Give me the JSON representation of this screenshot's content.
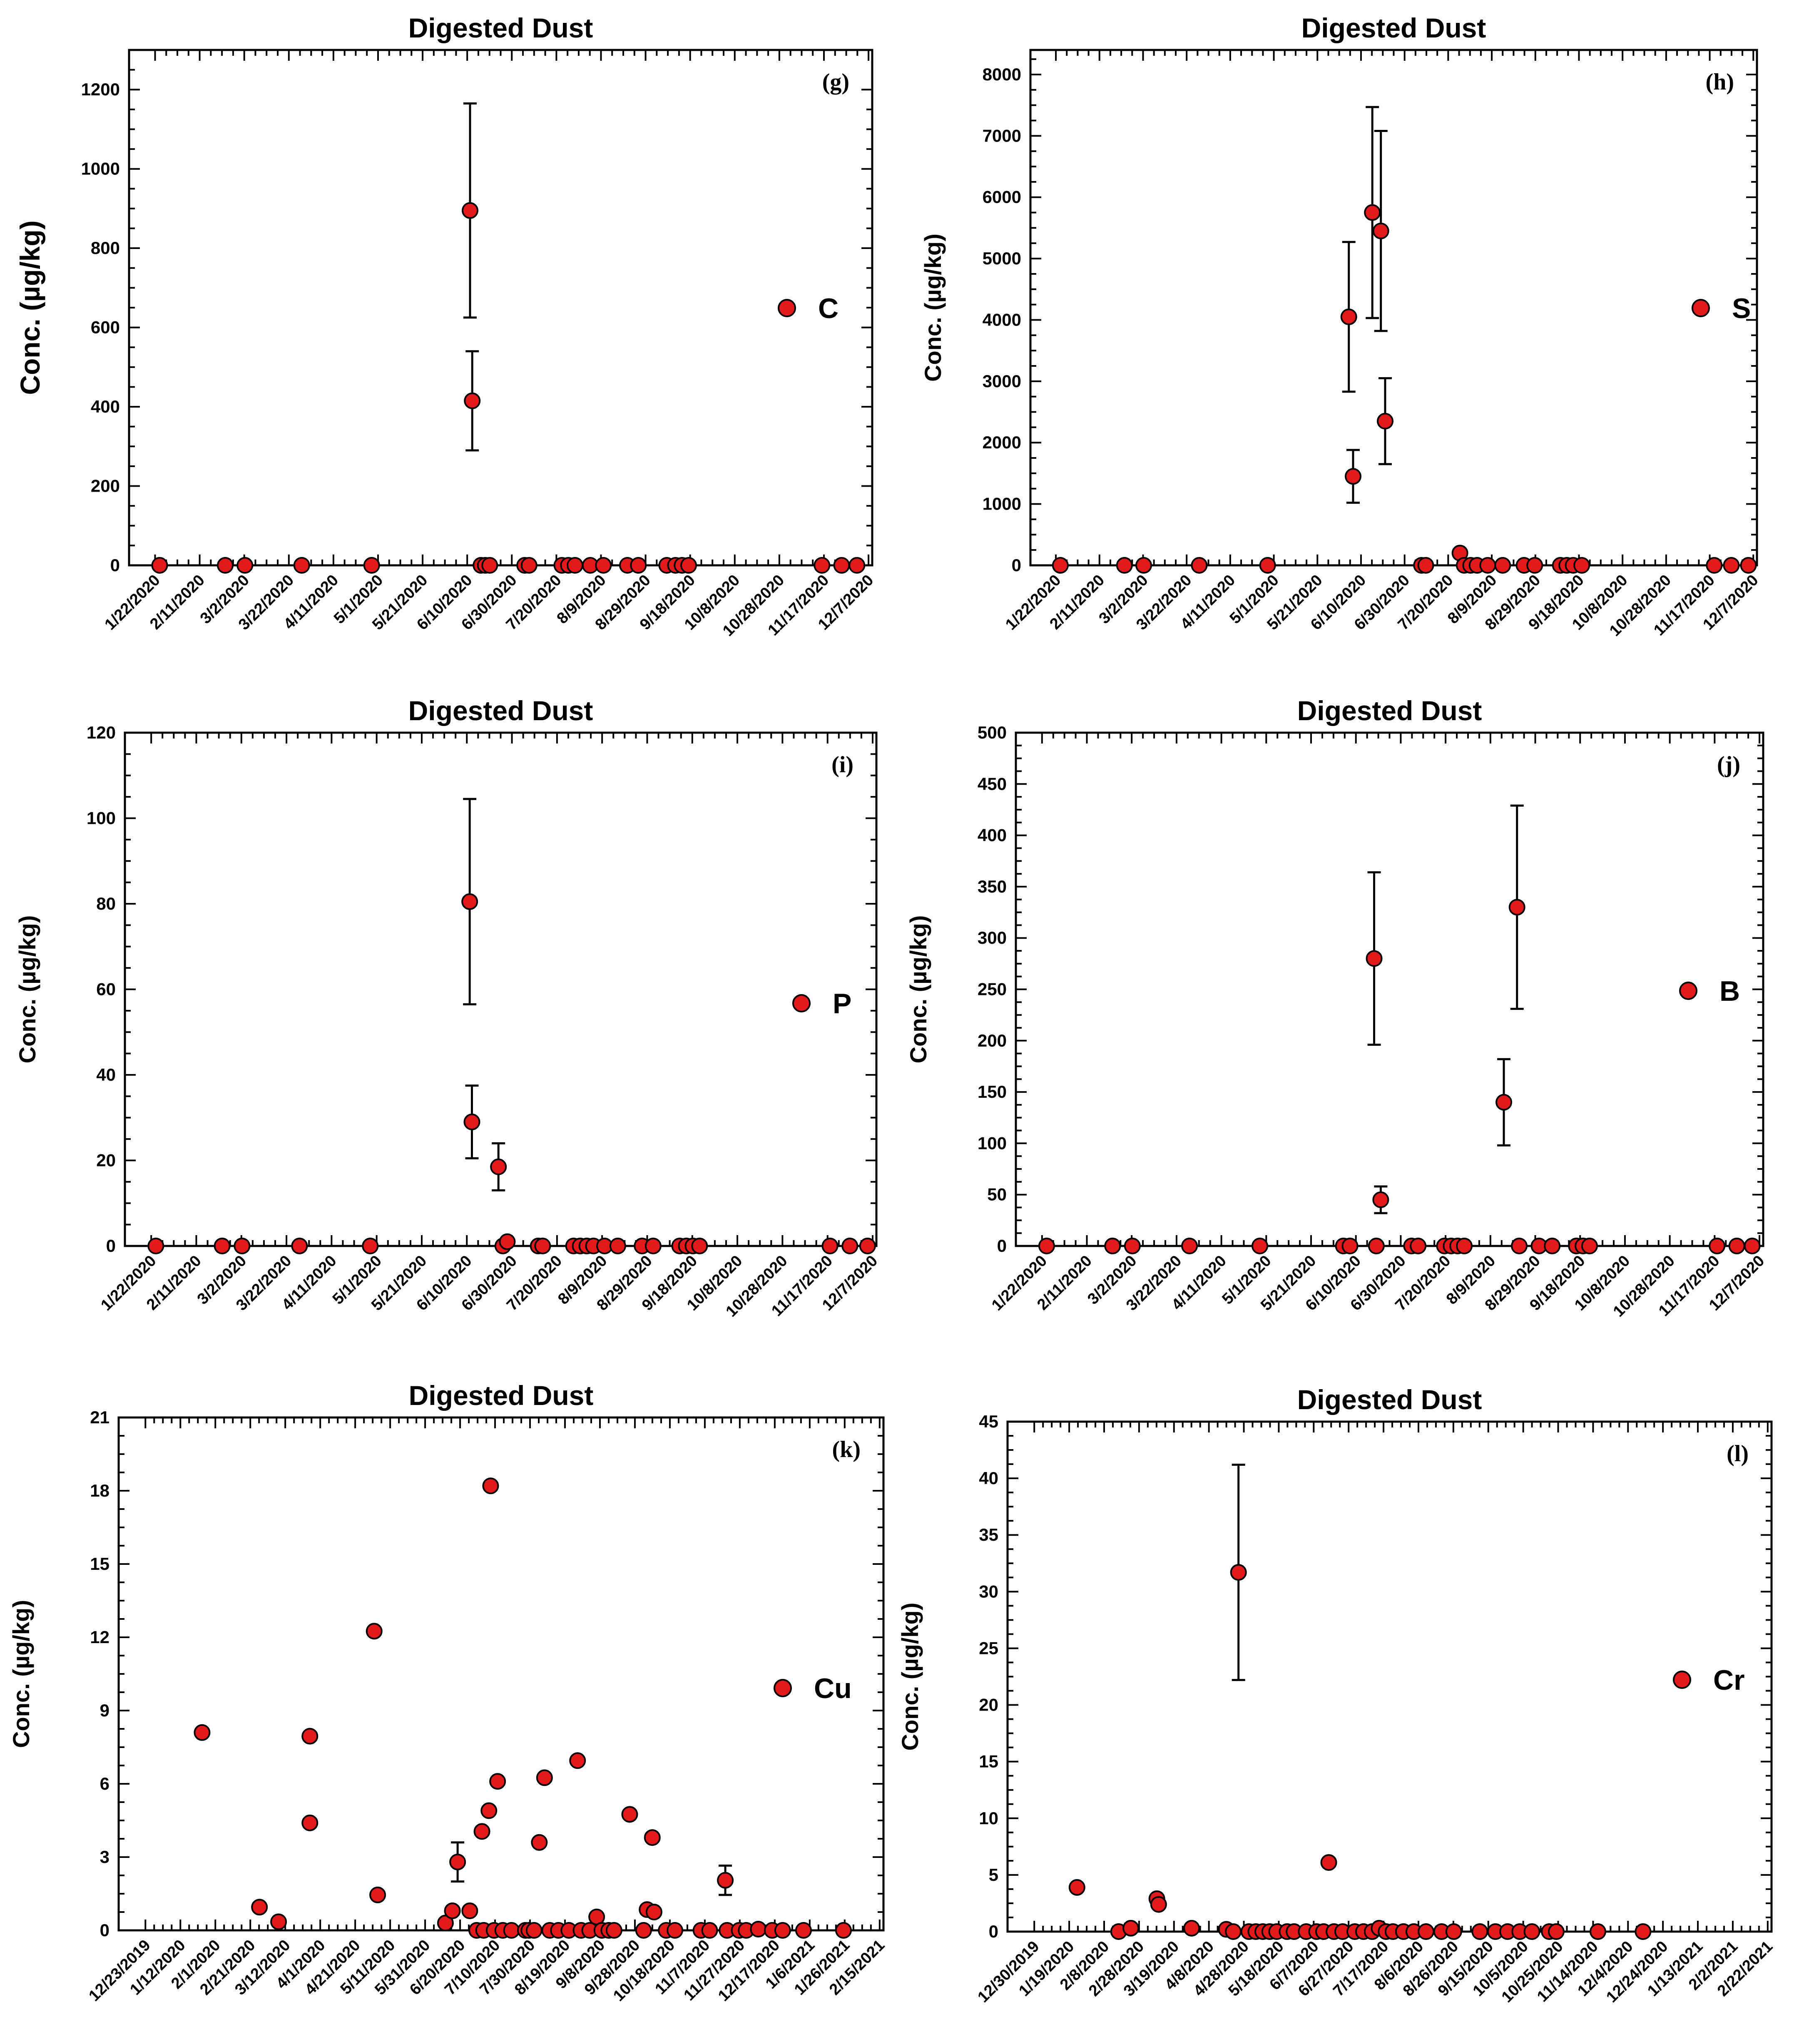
{
  "colors": {
    "marker": "#e31a1c",
    "axis": "#000000"
  },
  "chart_data": [
    {
      "id": "g",
      "type": "scatter",
      "title": "Digested Dust",
      "panel_label": "(g)",
      "series_name": "C",
      "ylabel": "Conc. (µg/kg)",
      "ylim": [
        0,
        1300
      ],
      "yticks": [
        0,
        200,
        400,
        600,
        800,
        1000,
        1200
      ],
      "x_tick_labels": [
        "1/22/2020",
        "2/11/2020",
        "3/2/2020",
        "3/22/2020",
        "4/11/2020",
        "5/1/2020",
        "5/21/2020",
        "6/10/2020",
        "6/30/2020",
        "7/20/2020",
        "8/9/2020",
        "8/29/2020",
        "9/18/2020",
        "10/8/2020",
        "10/28/2020",
        "11/17/2020",
        "12/7/2020"
      ],
      "xlim": [
        -10,
        330
      ],
      "points": [
        {
          "x": 4,
          "y": 0
        },
        {
          "x": 34,
          "y": 0
        },
        {
          "x": 43,
          "y": 0
        },
        {
          "x": 69,
          "y": 0
        },
        {
          "x": 101,
          "y": 0
        },
        {
          "x": 146,
          "y": 895,
          "err": 270
        },
        {
          "x": 147,
          "y": 415,
          "err": 125
        },
        {
          "x": 151,
          "y": 0
        },
        {
          "x": 153,
          "y": 0
        },
        {
          "x": 155,
          "y": 0
        },
        {
          "x": 171,
          "y": 0
        },
        {
          "x": 173,
          "y": 0
        },
        {
          "x": 188,
          "y": 0
        },
        {
          "x": 191,
          "y": 0
        },
        {
          "x": 194,
          "y": 0
        },
        {
          "x": 201,
          "y": 0
        },
        {
          "x": 207,
          "y": 0
        },
        {
          "x": 218,
          "y": 0
        },
        {
          "x": 223,
          "y": 0
        },
        {
          "x": 236,
          "y": 0
        },
        {
          "x": 240,
          "y": 0
        },
        {
          "x": 243,
          "y": 0
        },
        {
          "x": 246,
          "y": 0
        },
        {
          "x": 307,
          "y": 0
        },
        {
          "x": 316,
          "y": 0
        },
        {
          "x": 323,
          "y": 0
        }
      ]
    },
    {
      "id": "h",
      "type": "scatter",
      "title": "Digested Dust",
      "panel_label": "(h)",
      "series_name": "S",
      "ylabel": "Conc. (µg/kg)",
      "ylim": [
        0,
        8400
      ],
      "yticks": [
        0,
        1000,
        2000,
        3000,
        4000,
        5000,
        6000,
        7000,
        8000
      ],
      "x_tick_labels": [
        "1/22/2020",
        "2/11/2020",
        "3/2/2020",
        "3/22/2020",
        "4/11/2020",
        "5/1/2020",
        "5/21/2020",
        "6/10/2020",
        "6/30/2020",
        "7/20/2020",
        "8/9/2020",
        "8/29/2020",
        "9/18/2020",
        "10/8/2020",
        "10/28/2020",
        "11/17/2020",
        "12/7/2020"
      ],
      "xlim": [
        -10,
        330
      ],
      "points": [
        {
          "x": 4,
          "y": 0
        },
        {
          "x": 34,
          "y": 0
        },
        {
          "x": 43,
          "y": 0
        },
        {
          "x": 69,
          "y": 0
        },
        {
          "x": 101,
          "y": 0
        },
        {
          "x": 139,
          "y": 4050,
          "err": 1220
        },
        {
          "x": 141,
          "y": 1450,
          "err": 430
        },
        {
          "x": 150,
          "y": 5750,
          "err": 1720
        },
        {
          "x": 154,
          "y": 5450,
          "err": 1630
        },
        {
          "x": 156,
          "y": 2350,
          "err": 700
        },
        {
          "x": 173,
          "y": 0
        },
        {
          "x": 175,
          "y": 0
        },
        {
          "x": 191,
          "y": 200
        },
        {
          "x": 193,
          "y": 0
        },
        {
          "x": 196,
          "y": 0
        },
        {
          "x": 199,
          "y": 0
        },
        {
          "x": 204,
          "y": 0
        },
        {
          "x": 211,
          "y": 0
        },
        {
          "x": 221,
          "y": 0
        },
        {
          "x": 226,
          "y": 0
        },
        {
          "x": 238,
          "y": 0
        },
        {
          "x": 241,
          "y": 0
        },
        {
          "x": 244,
          "y": 0
        },
        {
          "x": 248,
          "y": 0
        },
        {
          "x": 310,
          "y": 0
        },
        {
          "x": 318,
          "y": 0
        },
        {
          "x": 326,
          "y": 0
        }
      ]
    },
    {
      "id": "i",
      "type": "scatter",
      "title": "Digested Dust",
      "panel_label": "(i)",
      "series_name": "P",
      "ylabel": "Conc. (µg/kg)",
      "ylim": [
        0,
        120
      ],
      "yticks": [
        0,
        20,
        40,
        60,
        80,
        100,
        120
      ],
      "x_tick_labels": [
        "1/22/2020",
        "2/11/2020",
        "3/2/2020",
        "3/22/2020",
        "4/11/2020",
        "5/1/2020",
        "5/21/2020",
        "6/10/2020",
        "6/30/2020",
        "7/20/2020",
        "8/9/2020",
        "8/29/2020",
        "9/18/2020",
        "10/8/2020",
        "10/28/2020",
        "11/17/2020",
        "12/7/2020"
      ],
      "xlim": [
        -10,
        330
      ],
      "points": [
        {
          "x": 4,
          "y": 0
        },
        {
          "x": 34,
          "y": 0
        },
        {
          "x": 43,
          "y": 0
        },
        {
          "x": 69,
          "y": 0
        },
        {
          "x": 101,
          "y": 0
        },
        {
          "x": 146,
          "y": 80.5,
          "err": 24
        },
        {
          "x": 147,
          "y": 29,
          "err": 8.5
        },
        {
          "x": 159,
          "y": 18.5,
          "err": 5.5
        },
        {
          "x": 161,
          "y": 0
        },
        {
          "x": 163,
          "y": 1
        },
        {
          "x": 177,
          "y": 0
        },
        {
          "x": 179,
          "y": 0
        },
        {
          "x": 193,
          "y": 0
        },
        {
          "x": 196,
          "y": 0
        },
        {
          "x": 199,
          "y": 0
        },
        {
          "x": 202,
          "y": 0
        },
        {
          "x": 207,
          "y": 0
        },
        {
          "x": 213,
          "y": 0
        },
        {
          "x": 224,
          "y": 0
        },
        {
          "x": 229,
          "y": 0
        },
        {
          "x": 241,
          "y": 0
        },
        {
          "x": 244,
          "y": 0
        },
        {
          "x": 247,
          "y": 0
        },
        {
          "x": 250,
          "y": 0
        },
        {
          "x": 309,
          "y": 0
        },
        {
          "x": 318,
          "y": 0
        },
        {
          "x": 326,
          "y": 0
        }
      ]
    },
    {
      "id": "j",
      "type": "scatter",
      "title": "Digested Dust",
      "panel_label": "(j)",
      "series_name": "B",
      "ylabel": "Conc. (µg/kg)",
      "ylim": [
        0,
        500
      ],
      "yticks": [
        0,
        50,
        100,
        150,
        200,
        250,
        300,
        350,
        400,
        450,
        500
      ],
      "x_tick_labels": [
        "1/22/2020",
        "2/11/2020",
        "3/2/2020",
        "3/22/2020",
        "4/11/2020",
        "5/1/2020",
        "5/21/2020",
        "6/10/2020",
        "6/30/2020",
        "7/20/2020",
        "8/9/2020",
        "8/29/2020",
        "9/18/2020",
        "10/8/2020",
        "10/28/2020",
        "11/17/2020",
        "12/7/2020"
      ],
      "xlim": [
        -10,
        330
      ],
      "points": [
        {
          "x": 4,
          "y": 0
        },
        {
          "x": 34,
          "y": 0
        },
        {
          "x": 43,
          "y": 0
        },
        {
          "x": 69,
          "y": 0
        },
        {
          "x": 101,
          "y": 0
        },
        {
          "x": 139,
          "y": 0
        },
        {
          "x": 142,
          "y": 0
        },
        {
          "x": 153,
          "y": 280,
          "err": 84
        },
        {
          "x": 154,
          "y": 0
        },
        {
          "x": 156,
          "y": 45,
          "err": 13
        },
        {
          "x": 170,
          "y": 0
        },
        {
          "x": 173,
          "y": 0
        },
        {
          "x": 185,
          "y": 0
        },
        {
          "x": 188,
          "y": 0
        },
        {
          "x": 191,
          "y": 0
        },
        {
          "x": 194,
          "y": 0
        },
        {
          "x": 212,
          "y": 140,
          "err": 42
        },
        {
          "x": 218,
          "y": 330,
          "err": 99
        },
        {
          "x": 219,
          "y": 0
        },
        {
          "x": 228,
          "y": 0
        },
        {
          "x": 234,
          "y": 0
        },
        {
          "x": 245,
          "y": 0
        },
        {
          "x": 248,
          "y": 0
        },
        {
          "x": 251,
          "y": 0
        },
        {
          "x": 309,
          "y": 0
        },
        {
          "x": 318,
          "y": 0
        },
        {
          "x": 325,
          "y": 0
        }
      ]
    },
    {
      "id": "k",
      "type": "scatter",
      "title": "Digested Dust",
      "panel_label": "(k)",
      "series_name": "Cu",
      "ylabel": "Conc. (µg/kg)",
      "ylim": [
        0,
        21
      ],
      "yticks": [
        0,
        3,
        6,
        9,
        12,
        15,
        18,
        21
      ],
      "x_tick_labels": [
        "12/23/2019",
        "1/12/2020",
        "2/1/2020",
        "2/21/2020",
        "3/12/2020",
        "4/1/2020",
        "4/21/2020",
        "5/11/2020",
        "5/31/2020",
        "6/20/2020",
        "7/10/2020",
        "7/30/2020",
        "8/19/2020",
        "9/8/2020",
        "9/28/2020",
        "10/18/2020",
        "11/7/2020",
        "11/27/2020",
        "12/17/2020",
        "1/6/2021",
        "1/26/2021",
        "2/15/2021"
      ],
      "xlim": [
        -10,
        430
      ],
      "points": [
        {
          "x": 38,
          "y": 8.1
        },
        {
          "x": 71,
          "y": 0.95
        },
        {
          "x": 82,
          "y": 0.35
        },
        {
          "x": 100,
          "y": 7.95
        },
        {
          "x": 100,
          "y": 4.4
        },
        {
          "x": 137,
          "y": 12.25
        },
        {
          "x": 139,
          "y": 1.45
        },
        {
          "x": 178,
          "y": 0.3
        },
        {
          "x": 182,
          "y": 0.8
        },
        {
          "x": 185,
          "y": 2.8,
          "err": 0.8
        },
        {
          "x": 192,
          "y": 0.8
        },
        {
          "x": 196,
          "y": 0
        },
        {
          "x": 199,
          "y": 4.05
        },
        {
          "x": 200,
          "y": 0
        },
        {
          "x": 203,
          "y": 4.9
        },
        {
          "x": 204,
          "y": 18.2
        },
        {
          "x": 206,
          "y": 0
        },
        {
          "x": 208,
          "y": 6.1
        },
        {
          "x": 211,
          "y": 0
        },
        {
          "x": 216,
          "y": 0
        },
        {
          "x": 224,
          "y": 0
        },
        {
          "x": 226,
          "y": 0
        },
        {
          "x": 229,
          "y": 0
        },
        {
          "x": 232,
          "y": 3.6
        },
        {
          "x": 235,
          "y": 6.25
        },
        {
          "x": 238,
          "y": 0
        },
        {
          "x": 243,
          "y": 0
        },
        {
          "x": 249,
          "y": 0
        },
        {
          "x": 254,
          "y": 6.95
        },
        {
          "x": 256,
          "y": 0
        },
        {
          "x": 261,
          "y": 0
        },
        {
          "x": 265,
          "y": 0.55
        },
        {
          "x": 268,
          "y": 0
        },
        {
          "x": 272,
          "y": 0
        },
        {
          "x": 275,
          "y": 0
        },
        {
          "x": 284,
          "y": 4.75
        },
        {
          "x": 292,
          "y": 0
        },
        {
          "x": 294,
          "y": 0.85
        },
        {
          "x": 297,
          "y": 3.8
        },
        {
          "x": 298,
          "y": 0.75
        },
        {
          "x": 305,
          "y": 0
        },
        {
          "x": 310,
          "y": 0
        },
        {
          "x": 325,
          "y": 0
        },
        {
          "x": 330,
          "y": 0
        },
        {
          "x": 339,
          "y": 2.05,
          "err": 0.6
        },
        {
          "x": 340,
          "y": 0
        },
        {
          "x": 347,
          "y": 0
        },
        {
          "x": 351,
          "y": 0
        },
        {
          "x": 358,
          "y": 0.05
        },
        {
          "x": 366,
          "y": 0
        },
        {
          "x": 372,
          "y": 0
        },
        {
          "x": 384,
          "y": 0
        },
        {
          "x": 407,
          "y": 0
        }
      ]
    },
    {
      "id": "l",
      "type": "scatter",
      "title": "Digested Dust",
      "panel_label": "(l)",
      "series_name": "Cr",
      "ylabel": "Conc. (µg/kg)",
      "ylim": [
        0,
        45
      ],
      "yticks": [
        0,
        5,
        10,
        15,
        20,
        25,
        30,
        35,
        40,
        45
      ],
      "x_tick_labels": [
        "12/30/2019",
        "1/19/2020",
        "2/8/2020",
        "2/28/2020",
        "3/19/2020",
        "4/8/2020",
        "4/28/2020",
        "5/18/2020",
        "6/7/2020",
        "6/27/2020",
        "7/17/2020",
        "8/6/2020",
        "8/26/2020",
        "9/15/2020",
        "10/5/2020",
        "10/25/2020",
        "11/14/2020",
        "12/4/2020",
        "12/24/2020",
        "1/13/2021",
        "2/2/2021",
        "2/22/2021"
      ],
      "xlim": [
        -10,
        430
      ],
      "points": [
        {
          "x": 30,
          "y": 3.9
        },
        {
          "x": 54,
          "y": 0
        },
        {
          "x": 61,
          "y": 0.3,
          "err": 0.4
        },
        {
          "x": 76,
          "y": 2.9
        },
        {
          "x": 77,
          "y": 2.4
        },
        {
          "x": 96,
          "y": 0.3
        },
        {
          "x": 116,
          "y": 0.2
        },
        {
          "x": 120,
          "y": 0
        },
        {
          "x": 123,
          "y": 31.7,
          "err": 9.5
        },
        {
          "x": 129,
          "y": 0
        },
        {
          "x": 133,
          "y": 0
        },
        {
          "x": 137,
          "y": 0
        },
        {
          "x": 141,
          "y": 0
        },
        {
          "x": 145,
          "y": 0
        },
        {
          "x": 151,
          "y": 0
        },
        {
          "x": 155,
          "y": 0
        },
        {
          "x": 162,
          "y": 0
        },
        {
          "x": 168,
          "y": 0
        },
        {
          "x": 172,
          "y": 0
        },
        {
          "x": 175,
          "y": 6.1
        },
        {
          "x": 178,
          "y": 0
        },
        {
          "x": 183,
          "y": 0
        },
        {
          "x": 190,
          "y": 0
        },
        {
          "x": 195,
          "y": 0
        },
        {
          "x": 200,
          "y": 0
        },
        {
          "x": 204,
          "y": 0.3
        },
        {
          "x": 208,
          "y": 0
        },
        {
          "x": 212,
          "y": 0
        },
        {
          "x": 218,
          "y": 0
        },
        {
          "x": 224,
          "y": 0
        },
        {
          "x": 231,
          "y": 0
        },
        {
          "x": 240,
          "y": 0
        },
        {
          "x": 247,
          "y": 0
        },
        {
          "x": 262,
          "y": 0
        },
        {
          "x": 271,
          "y": 0
        },
        {
          "x": 278,
          "y": 0
        },
        {
          "x": 285,
          "y": 0
        },
        {
          "x": 292,
          "y": 0
        },
        {
          "x": 302,
          "y": 0
        },
        {
          "x": 306,
          "y": 0
        },
        {
          "x": 330,
          "y": 0
        },
        {
          "x": 356,
          "y": 0
        }
      ]
    }
  ]
}
